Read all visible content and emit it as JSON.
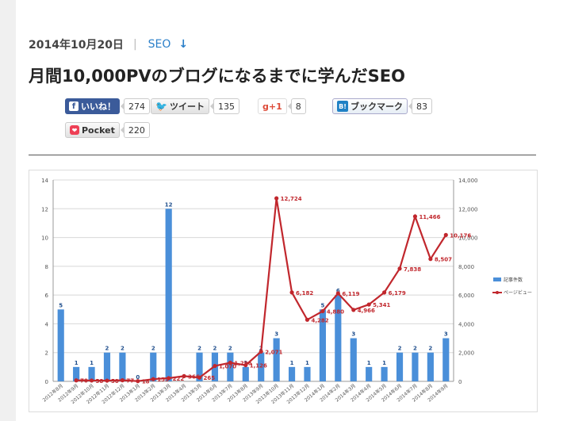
{
  "post": {
    "date": "2014年10月20日",
    "separator": "|",
    "category": "SEO",
    "title": "月間10,000PVのブログになるまでに学んだSEO"
  },
  "share": {
    "facebook": {
      "label": "いいね！",
      "icon": "f",
      "count": "274"
    },
    "twitter": {
      "label": "ツイート",
      "icon": "🐦",
      "count": "135"
    },
    "googleplus": {
      "label": "g+1",
      "count": "8"
    },
    "hatena": {
      "label": "ブックマーク",
      "icon": "B!",
      "count": "83"
    },
    "pocket": {
      "label": "Pocket",
      "icon": "❤",
      "count": "220"
    }
  },
  "colors": {
    "bar": "#4a8fd9",
    "line": "#c1272d",
    "link": "#2a7fc9",
    "facebook": "#3b5b9a"
  },
  "chart_data": {
    "type": "bar",
    "categories": [
      "2012年8月",
      "2012年9月",
      "2012年10月",
      "2012年11月",
      "2012年12月",
      "2013年1月",
      "2013年2月",
      "2013年3月",
      "2013年4月",
      "2013年5月",
      "2013年6月",
      "2013年7月",
      "2013年8月",
      "2013年9月",
      "2013年10月",
      "2013年11月",
      "2013年12月",
      "2014年1月",
      "2014年2月",
      "2014年3月",
      "2014年4月",
      "2014年5月",
      "2014年6月",
      "2014年7月",
      "2014年8月",
      "2014年9月"
    ],
    "series": [
      {
        "name": "記事件数",
        "type": "bar",
        "axis": "left",
        "values": [
          5,
          1,
          1,
          2,
          2,
          0,
          2,
          12,
          0,
          2,
          2,
          2,
          1,
          2,
          3,
          1,
          1,
          5,
          6,
          3,
          1,
          1,
          2,
          2,
          2,
          3
        ]
      },
      {
        "name": "ページビュー",
        "type": "line",
        "axis": "right",
        "values": [
          null,
          70,
          58,
          50,
          77,
          18,
          155,
          222,
          366,
          265,
          1070,
          1296,
          1126,
          2071,
          12724,
          6182,
          4282,
          4880,
          6119,
          4966,
          5341,
          6179,
          7838,
          11466,
          8507,
          10176
        ]
      }
    ],
    "bar_labels": [
      "5",
      "1",
      "1",
      "2",
      "2",
      "0",
      "2",
      "12",
      "",
      "2",
      "2",
      "2",
      "1",
      "2",
      "3",
      "1",
      "1",
      "5",
      "6",
      "3",
      "1",
      "1",
      "2",
      "2",
      "2",
      "3"
    ],
    "line_labels": [
      "",
      "70",
      "58",
      "50",
      "77",
      "18",
      "155",
      "222",
      "366",
      "265",
      "1,070",
      "1,296",
      "1,126",
      "2,071",
      "12,724",
      "6,182",
      "4,282",
      "4,880",
      "6,119",
      "4,966",
      "5,341",
      "6,179",
      "7,838",
      "11,466",
      "8,507",
      "10,176"
    ],
    "y_left": {
      "min": 0,
      "max": 14,
      "ticks": [
        "0",
        "2",
        "4",
        "6",
        "8",
        "10",
        "12",
        "14"
      ]
    },
    "y_right": {
      "min": 0,
      "max": 14000,
      "ticks": [
        "0",
        "2,000",
        "4,000",
        "6,000",
        "8,000",
        "10,000",
        "12,000",
        "14,000"
      ]
    },
    "grid": true,
    "legend_position": "right"
  }
}
